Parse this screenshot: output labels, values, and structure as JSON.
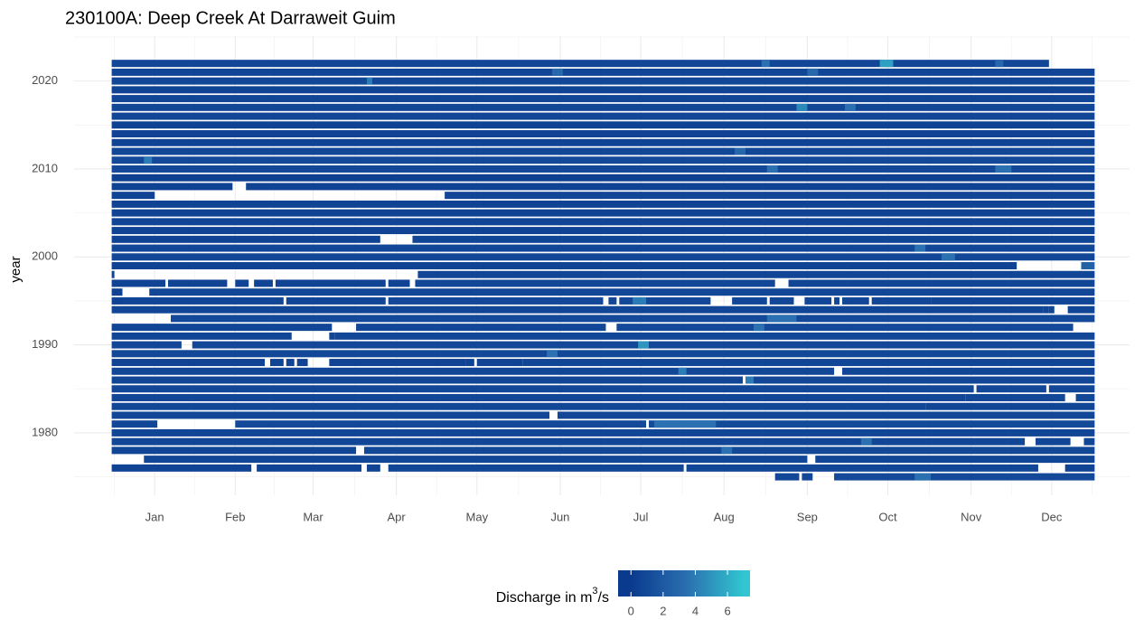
{
  "chart_data": {
    "type": "heatmap",
    "title": "230100A: Deep Creek At Darraweit Guim",
    "y_label": "year",
    "xlim": [
      -14,
      379
    ],
    "xticks": [
      {
        "value": 16,
        "label": "Jan"
      },
      {
        "value": 46,
        "label": "Feb"
      },
      {
        "value": 75,
        "label": "Mar"
      },
      {
        "value": 106,
        "label": "Apr"
      },
      {
        "value": 136,
        "label": "May"
      },
      {
        "value": 167,
        "label": "Jun"
      },
      {
        "value": 197,
        "label": "Jul"
      },
      {
        "value": 228,
        "label": "Aug"
      },
      {
        "value": 259,
        "label": "Sep"
      },
      {
        "value": 289,
        "label": "Oct"
      },
      {
        "value": 320,
        "label": "Nov"
      },
      {
        "value": 350,
        "label": "Dec"
      }
    ],
    "ylim": [
      1972.9,
      2025.1
    ],
    "yticks": [
      1980,
      1990,
      2000,
      2010,
      2020
    ],
    "grid": true,
    "legend_title": [
      "Discharge in  m",
      "3",
      "/s"
    ],
    "fill_lim": [
      -0.8,
      7.4
    ],
    "fill_ticks": [
      0,
      2,
      4,
      6
    ],
    "color_stops": [
      {
        "value": 0,
        "color": "#0a3a8e"
      },
      {
        "value": 3.5,
        "color": "#2b70b0"
      },
      {
        "value": 7,
        "color": "#31c6d0"
      }
    ],
    "rows": [
      {
        "year": 2022,
        "segments": [
          [
            1,
            349,
            0.8
          ],
          [
            243,
            245,
            3.5
          ],
          [
            287,
            291,
            5.5
          ],
          [
            330,
            332,
            3
          ]
        ]
      },
      {
        "year": 2021,
        "segments": [
          [
            1,
            366,
            0.7
          ],
          [
            165,
            168,
            3
          ],
          [
            260,
            263,
            3
          ]
        ]
      },
      {
        "year": 2020,
        "segments": [
          [
            1,
            366,
            0.8
          ],
          [
            96,
            97,
            4
          ]
        ]
      },
      {
        "year": 2019,
        "segments": [
          [
            1,
            366,
            0.6
          ]
        ]
      },
      {
        "year": 2018,
        "segments": [
          [
            1,
            366,
            0.7
          ]
        ]
      },
      {
        "year": 2017,
        "segments": [
          [
            1,
            366,
            0.8
          ],
          [
            256,
            259,
            4.5
          ],
          [
            274,
            277,
            3.5
          ]
        ]
      },
      {
        "year": 2016,
        "segments": [
          [
            1,
            366,
            0.7
          ]
        ]
      },
      {
        "year": 2015,
        "segments": [
          [
            1,
            366,
            0.5
          ]
        ]
      },
      {
        "year": 2014,
        "segments": [
          [
            1,
            366,
            0.6
          ]
        ]
      },
      {
        "year": 2013,
        "segments": [
          [
            1,
            366,
            0.6
          ]
        ]
      },
      {
        "year": 2012,
        "segments": [
          [
            1,
            366,
            0.8
          ],
          [
            233,
            236,
            3
          ]
        ]
      },
      {
        "year": 2011,
        "segments": [
          [
            1,
            366,
            1.0
          ],
          [
            13,
            15,
            4
          ]
        ]
      },
      {
        "year": 2010,
        "segments": [
          [
            1,
            366,
            0.9
          ],
          [
            245,
            248,
            3.5
          ],
          [
            330,
            335,
            3.5
          ]
        ]
      },
      {
        "year": 2009,
        "segments": [
          [
            1,
            366,
            0.4
          ]
        ]
      },
      {
        "year": 2008,
        "segments": [
          [
            1,
            45,
            0.5
          ],
          [
            51,
            366,
            0.6
          ]
        ]
      },
      {
        "year": 2007,
        "segments": [
          [
            1,
            16,
            0.6
          ],
          [
            125,
            366,
            0.7
          ]
        ]
      },
      {
        "year": 2006,
        "segments": [
          [
            1,
            366,
            0.6
          ]
        ]
      },
      {
        "year": 2005,
        "segments": [
          [
            1,
            366,
            0.6
          ]
        ]
      },
      {
        "year": 2004,
        "segments": [
          [
            1,
            366,
            0.7
          ]
        ]
      },
      {
        "year": 2003,
        "segments": [
          [
            1,
            366,
            0.6
          ]
        ]
      },
      {
        "year": 2002,
        "segments": [
          [
            1,
            100,
            0.6
          ],
          [
            113,
            366,
            0.7
          ]
        ]
      },
      {
        "year": 2001,
        "segments": [
          [
            1,
            366,
            0.8
          ],
          [
            300,
            303,
            3.5
          ]
        ]
      },
      {
        "year": 2000,
        "segments": [
          [
            1,
            366,
            0.8
          ],
          [
            310,
            314,
            3.5
          ]
        ]
      },
      {
        "year": 1999,
        "segments": [
          [
            1,
            337,
            0.6
          ],
          [
            362,
            366,
            2.5
          ]
        ]
      },
      {
        "year": 1998,
        "segments": [
          [
            1,
            1,
            0.6
          ],
          [
            115,
            366,
            0.7
          ]
        ]
      },
      {
        "year": 1997,
        "segments": [
          [
            1,
            20,
            0.6
          ],
          [
            22,
            43,
            0.6
          ],
          [
            47,
            51,
            0.6
          ],
          [
            54,
            60,
            0.6
          ],
          [
            62,
            102,
            0.6
          ],
          [
            104,
            111,
            0.6
          ],
          [
            114,
            247,
            0.8
          ],
          [
            253,
            366,
            0.7
          ]
        ]
      },
      {
        "year": 1996,
        "segments": [
          [
            1,
            4,
            0.6
          ],
          [
            15,
            366,
            0.8
          ]
        ]
      },
      {
        "year": 1995,
        "segments": [
          [
            1,
            4,
            0.6
          ],
          [
            5,
            64,
            0.7
          ],
          [
            66,
            102,
            0.7
          ],
          [
            104,
            183,
            0.9
          ],
          [
            186,
            188,
            0.8
          ],
          [
            190,
            223,
            0.9
          ],
          [
            195,
            199,
            4
          ],
          [
            232,
            236,
            0.8
          ],
          [
            237,
            244,
            0.8
          ],
          [
            246,
            254,
            0.8
          ],
          [
            259,
            268,
            0.8
          ],
          [
            270,
            271,
            0.8
          ],
          [
            273,
            282,
            0.8
          ],
          [
            284,
            305,
            0.8
          ],
          [
            306,
            366,
            0.7
          ]
        ]
      },
      {
        "year": 1994,
        "segments": [
          [
            1,
            347,
            0.7
          ],
          [
            348,
            349,
            0.7
          ],
          [
            350,
            351,
            0.7
          ],
          [
            357,
            366,
            0.7
          ]
        ]
      },
      {
        "year": 1993,
        "segments": [
          [
            23,
            366,
            1.0
          ],
          [
            245,
            255,
            3.5
          ]
        ]
      },
      {
        "year": 1992,
        "segments": [
          [
            1,
            82,
            0.7
          ],
          [
            92,
            184,
            0.8
          ],
          [
            189,
            358,
            1.0
          ],
          [
            240,
            243,
            3.5
          ]
        ]
      },
      {
        "year": 1991,
        "segments": [
          [
            1,
            67,
            0.7
          ],
          [
            82,
            83,
            0.7
          ],
          [
            84,
            366,
            0.8
          ]
        ]
      },
      {
        "year": 1990,
        "segments": [
          [
            1,
            26,
            0.8
          ],
          [
            31,
            366,
            0.9
          ],
          [
            197,
            200,
            5
          ]
        ]
      },
      {
        "year": 1989,
        "segments": [
          [
            1,
            366,
            0.9
          ],
          [
            163,
            166,
            3.5
          ]
        ]
      },
      {
        "year": 1988,
        "segments": [
          [
            1,
            57,
            0.6
          ],
          [
            60,
            64,
            0.6
          ],
          [
            66,
            68,
            0.6
          ],
          [
            70,
            73,
            0.6
          ],
          [
            82,
            132,
            0.6
          ],
          [
            133,
            135,
            0.6
          ],
          [
            137,
            153,
            0.6
          ],
          [
            154,
            366,
            0.7
          ]
        ]
      },
      {
        "year": 1987,
        "segments": [
          [
            1,
            269,
            0.8
          ],
          [
            212,
            214,
            4
          ],
          [
            273,
            366,
            0.7
          ]
        ]
      },
      {
        "year": 1986,
        "segments": [
          [
            1,
            235,
            0.7
          ],
          [
            237,
            366,
            0.8
          ],
          [
            237,
            239,
            4
          ]
        ]
      },
      {
        "year": 1985,
        "segments": [
          [
            1,
            321,
            0.8
          ],
          [
            323,
            348,
            0.8
          ],
          [
            350,
            366,
            0.8
          ]
        ]
      },
      {
        "year": 1984,
        "segments": [
          [
            1,
            318,
            0.8
          ],
          [
            319,
            355,
            0.8
          ],
          [
            360,
            366,
            0.8
          ]
        ]
      },
      {
        "year": 1983,
        "segments": [
          [
            1,
            303,
            0.8
          ],
          [
            304,
            366,
            0.7
          ]
        ]
      },
      {
        "year": 1982,
        "segments": [
          [
            1,
            163,
            0.8
          ],
          [
            167,
            366,
            0.8
          ]
        ]
      },
      {
        "year": 1981,
        "segments": [
          [
            1,
            17,
            0.8
          ],
          [
            47,
            199,
            1.0
          ],
          [
            201,
            366,
            1.1
          ],
          [
            203,
            225,
            3.5
          ]
        ]
      },
      {
        "year": 1980,
        "segments": [
          [
            1,
            366,
            0.7
          ]
        ]
      },
      {
        "year": 1979,
        "segments": [
          [
            1,
            340,
            0.8
          ],
          [
            280,
            283,
            3.5
          ],
          [
            345,
            357,
            0.8
          ],
          [
            363,
            366,
            0.8
          ]
        ]
      },
      {
        "year": 1978,
        "segments": [
          [
            1,
            91,
            0.7
          ],
          [
            95,
            366,
            0.9
          ],
          [
            228,
            231,
            3.5
          ]
        ]
      },
      {
        "year": 1977,
        "segments": [
          [
            13,
            259,
            0.8
          ],
          [
            263,
            366,
            0.7
          ]
        ]
      },
      {
        "year": 1976,
        "segments": [
          [
            1,
            52,
            0.6
          ],
          [
            55,
            93,
            0.6
          ],
          [
            96,
            100,
            0.6
          ],
          [
            104,
            213,
            0.7
          ],
          [
            215,
            345,
            0.7
          ],
          [
            356,
            366,
            0.6
          ]
        ]
      },
      {
        "year": 1975,
        "segments": [
          [
            248,
            256,
            0.8
          ],
          [
            258,
            261,
            0.8
          ],
          [
            270,
            366,
            1.0
          ],
          [
            300,
            305,
            3.5
          ]
        ]
      }
    ]
  }
}
